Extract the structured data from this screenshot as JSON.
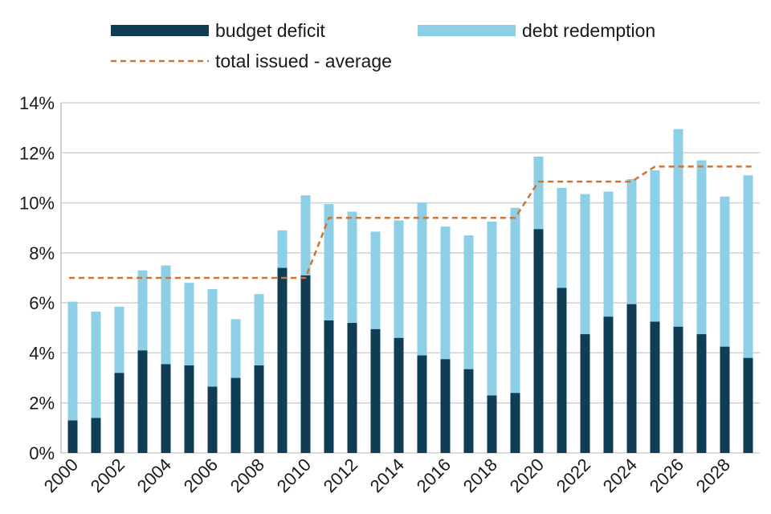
{
  "chart_data": {
    "type": "bar",
    "stacked": true,
    "title": "",
    "xlabel": "",
    "ylabel": "",
    "ylim": [
      0,
      14
    ],
    "y_ticks": [
      "0%",
      "2%",
      "4%",
      "6%",
      "8%",
      "10%",
      "12%",
      "14%"
    ],
    "x_tick_labels": [
      "2000",
      "2002",
      "2004",
      "2006",
      "2008",
      "2010",
      "2012",
      "2014",
      "2016",
      "2018",
      "2020",
      "2022",
      "2024",
      "2026",
      "2028"
    ],
    "categories": [
      "2000",
      "2001",
      "2002",
      "2003",
      "2004",
      "2005",
      "2006",
      "2007",
      "2008",
      "2009",
      "2010",
      "2011",
      "2012",
      "2013",
      "2014",
      "2015",
      "2016",
      "2017",
      "2018",
      "2019",
      "2020",
      "2021",
      "2022",
      "2023",
      "2024",
      "2025",
      "2026",
      "2027",
      "2028",
      "2029"
    ],
    "series": [
      {
        "name": "budget deficit",
        "color": "#0f3d56",
        "values": [
          1.3,
          1.4,
          3.2,
          4.1,
          3.55,
          3.5,
          2.65,
          3.0,
          3.5,
          7.4,
          7.1,
          5.3,
          5.2,
          4.95,
          4.6,
          3.9,
          3.75,
          3.35,
          2.3,
          2.4,
          8.95,
          6.6,
          4.75,
          5.45,
          5.95,
          5.25,
          5.05,
          4.75,
          4.25,
          3.8
        ]
      },
      {
        "name": "debt redemption",
        "color": "#8ecfe8",
        "values": [
          4.75,
          4.25,
          2.65,
          3.2,
          3.95,
          3.3,
          3.9,
          2.35,
          2.85,
          1.5,
          3.2,
          4.65,
          4.45,
          3.9,
          4.7,
          6.1,
          5.3,
          5.35,
          6.95,
          7.4,
          2.9,
          4.0,
          5.6,
          5.0,
          5.0,
          6.05,
          7.9,
          6.95,
          6.0,
          7.3
        ]
      }
    ],
    "average_line": {
      "name": "total issued - average",
      "color": "#d2732f",
      "segments": [
        {
          "from": "2000",
          "to": "2010",
          "value": 7.0
        },
        {
          "from": "2011",
          "to": "2019",
          "value": 9.4
        },
        {
          "from": "2020",
          "to": "2024",
          "value": 10.85
        },
        {
          "from": "2025",
          "to": "2029",
          "value": 11.45
        }
      ]
    },
    "legend": [
      {
        "label": "budget deficit",
        "kind": "bar",
        "color": "#0f3d56"
      },
      {
        "label": "debt redemption",
        "kind": "bar",
        "color": "#8ecfe8"
      },
      {
        "label": "total issued - average",
        "kind": "dashed-line",
        "color": "#d2732f"
      }
    ],
    "grid": "horizontal",
    "legend_position": "top"
  }
}
